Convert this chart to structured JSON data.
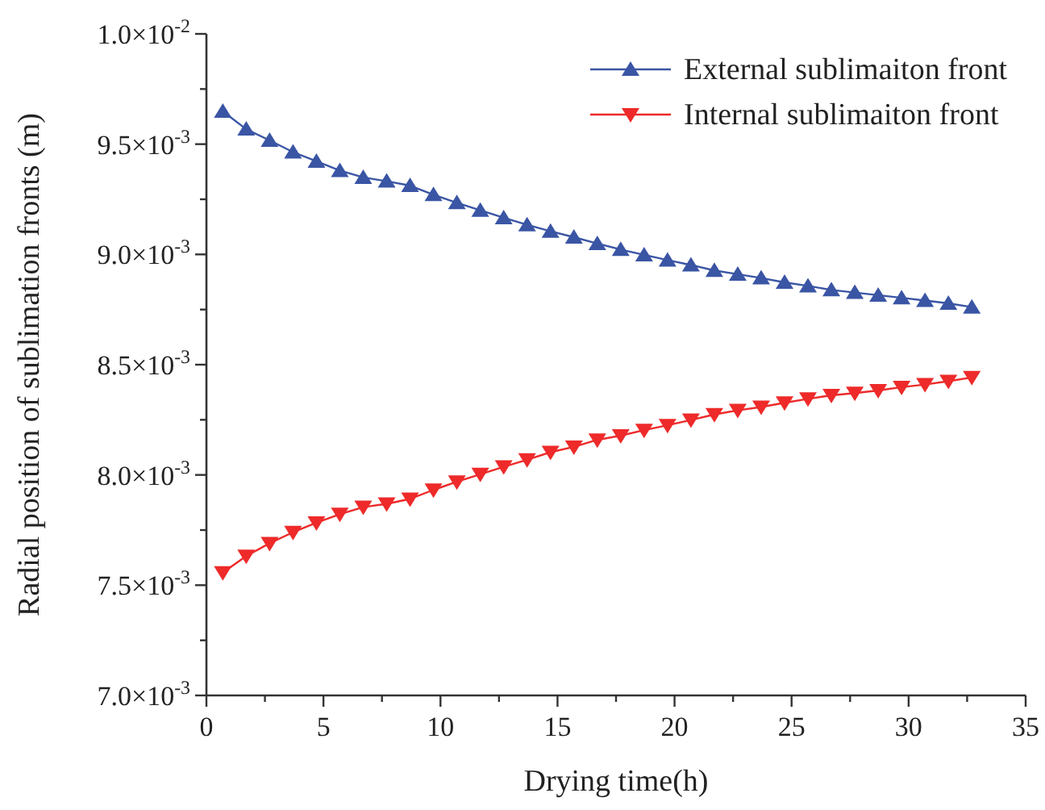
{
  "chart_data": {
    "type": "line",
    "xlabel": "Drying time(h)",
    "ylabel": "Radial position of sublimation fronts (m)",
    "xlim": [
      0,
      35
    ],
    "ylim": [
      0.007,
      0.01
    ],
    "xticks": [
      0,
      {
        "value": 2.5,
        "label": null
      },
      5,
      {
        "value": 7.5,
        "label": null
      },
      10,
      {
        "value": 12.5,
        "label": null
      },
      15,
      {
        "value": 17.5,
        "label": null
      },
      20,
      {
        "value": 22.5,
        "label": null
      },
      25,
      {
        "value": 27.5,
        "label": null
      },
      30,
      {
        "value": 32.5,
        "label": null
      },
      35
    ],
    "yticks": [
      {
        "value": 0.007,
        "label": "7.0×10$^{-3}$"
      },
      {
        "value": 0.00725,
        "label": null
      },
      {
        "value": 0.0075,
        "label": "7.5×10$^{-3}$"
      },
      {
        "value": 0.00775,
        "label": null
      },
      {
        "value": 0.008,
        "label": "8.0×10$^{-3}$"
      },
      {
        "value": 0.00825,
        "label": null
      },
      {
        "value": 0.0085,
        "label": "8.5×10$^{-3}$"
      },
      {
        "value": 0.00875,
        "label": null
      },
      {
        "value": 0.009,
        "label": "9.0×10$^{-3}$"
      },
      {
        "value": 0.00925,
        "label": null
      },
      {
        "value": 0.0095,
        "label": "9.5×10$^{-3}$"
      },
      {
        "value": 0.00975,
        "label": null
      },
      {
        "value": 0.01,
        "label": "1.0×10$^{-2}$"
      }
    ],
    "x": [
      0.7,
      1.7,
      2.7,
      3.7,
      4.7,
      5.7,
      6.7,
      7.7,
      8.7,
      9.7,
      10.7,
      11.7,
      12.7,
      13.7,
      14.7,
      15.7,
      16.7,
      17.7,
      18.7,
      19.7,
      20.7,
      21.7,
      22.7,
      23.7,
      24.7,
      25.7,
      26.7,
      27.7,
      28.7,
      29.7,
      30.7,
      31.7,
      32.7
    ],
    "legend": "top right",
    "grid": false,
    "line_style": "solid",
    "series": [
      {
        "name": "External sublimaiton front",
        "color": "#3a55a4",
        "marker": "triangle",
        "values": [
          0.009649,
          0.009568,
          0.009517,
          0.009464,
          0.009422,
          0.00938,
          0.009349,
          0.009332,
          0.009312,
          0.009271,
          0.009234,
          0.0092,
          0.009166,
          0.009134,
          0.009105,
          0.009078,
          0.009049,
          0.009022,
          0.008998,
          0.008974,
          0.008952,
          0.008927,
          0.00891,
          0.008893,
          0.008873,
          0.008857,
          0.008839,
          0.008827,
          0.008815,
          0.008803,
          0.008791,
          0.008778,
          0.008761
        ]
      },
      {
        "name": "Internal sublimaiton front",
        "color": "#ee2a2a",
        "marker": "triangle-down",
        "values": [
          0.007557,
          0.007632,
          0.00769,
          0.00774,
          0.007783,
          0.007822,
          0.007854,
          0.007869,
          0.007891,
          0.007932,
          0.007969,
          0.008003,
          0.008037,
          0.008069,
          0.008103,
          0.008127,
          0.008159,
          0.008178,
          0.008203,
          0.008225,
          0.008249,
          0.008274,
          0.008293,
          0.008308,
          0.008327,
          0.008345,
          0.008361,
          0.008371,
          0.008383,
          0.008398,
          0.00841,
          0.008425,
          0.008442
        ]
      }
    ]
  }
}
